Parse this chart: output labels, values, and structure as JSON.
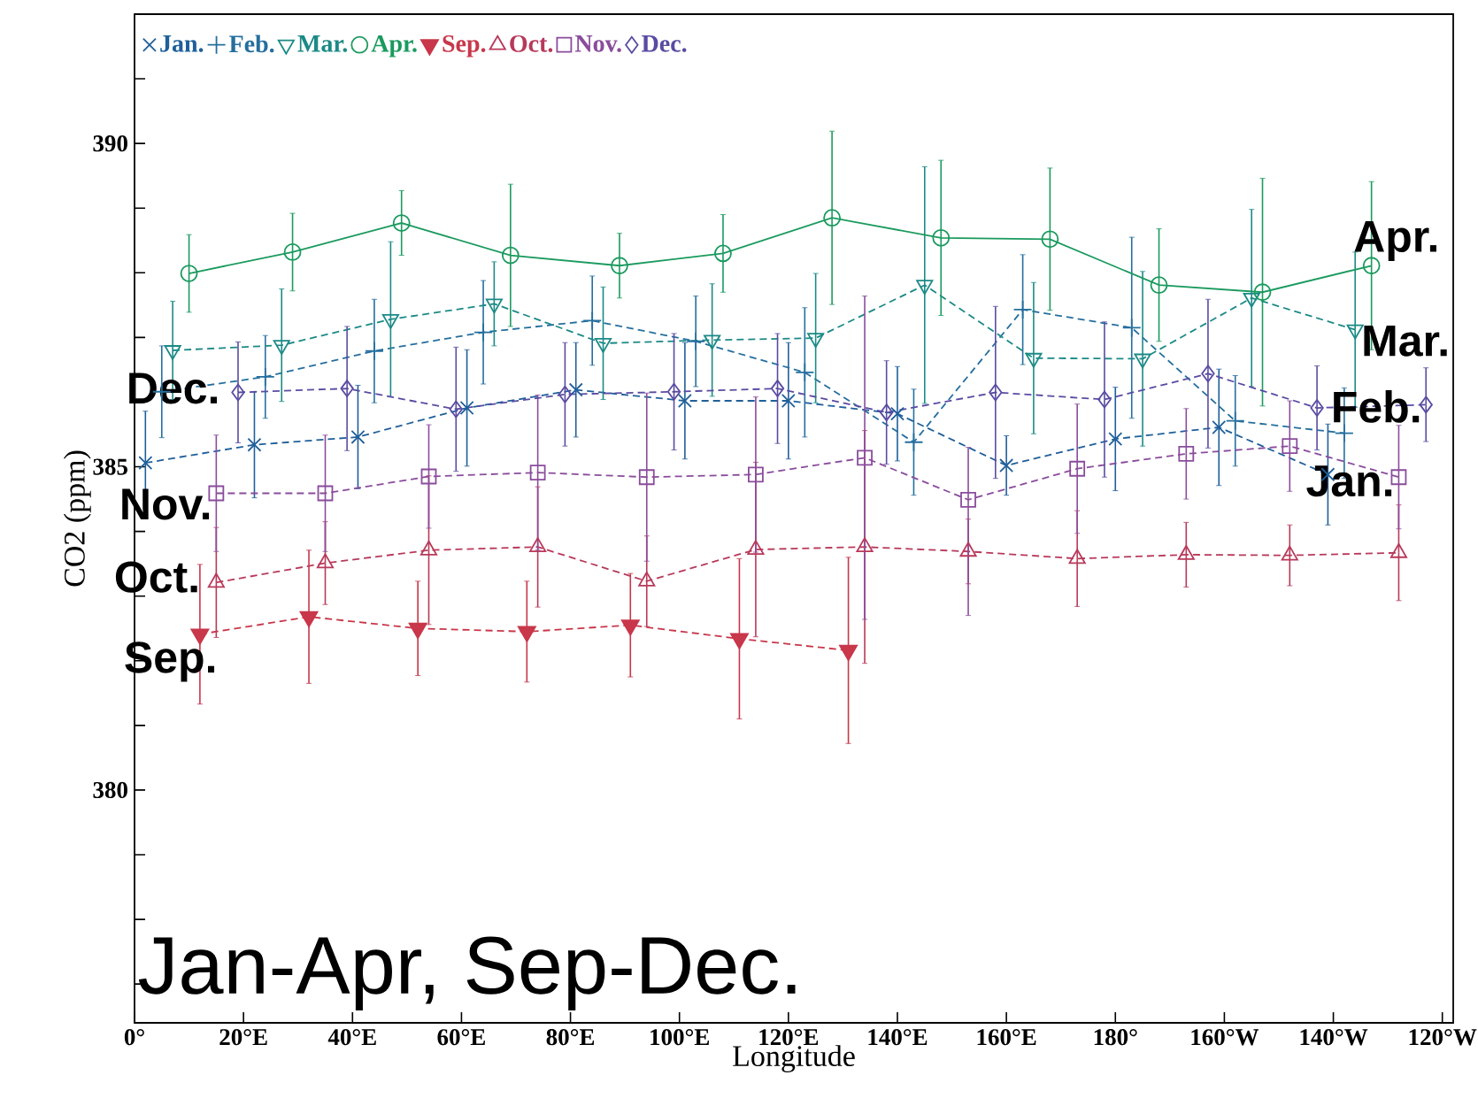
{
  "chart_data": {
    "type": "line",
    "xlabel": "Longitude",
    "ylabel": "CO2 (ppm)",
    "xlim": [
      0,
      242
    ],
    "ylim": [
      376.4,
      392
    ],
    "xticks": [
      {
        "value": 0,
        "label": "0°"
      },
      {
        "value": 20,
        "label": "20°E"
      },
      {
        "value": 40,
        "label": "40°E"
      },
      {
        "value": 60,
        "label": "60°E"
      },
      {
        "value": 80,
        "label": "80°E"
      },
      {
        "value": 100,
        "label": "100°E"
      },
      {
        "value": 120,
        "label": "120°E"
      },
      {
        "value": 140,
        "label": "140°E"
      },
      {
        "value": 160,
        "label": "160°E"
      },
      {
        "value": 180,
        "label": "180°"
      },
      {
        "value": 200,
        "label": "160°W"
      },
      {
        "value": 220,
        "label": "140°W"
      },
      {
        "value": 240,
        "label": "120°W"
      }
    ],
    "yticks": [
      {
        "value": 377,
        "label": null
      },
      {
        "value": 378,
        "label": null
      },
      {
        "value": 379,
        "label": null
      },
      380,
      {
        "value": 381,
        "label": null
      },
      {
        "value": 382,
        "label": null
      },
      {
        "value": 383,
        "label": null
      },
      {
        "value": 384,
        "label": null
      },
      385,
      {
        "value": 386,
        "label": null
      },
      {
        "value": 387,
        "label": null
      },
      {
        "value": 388,
        "label": null
      },
      {
        "value": 389,
        "label": null
      },
      390,
      {
        "value": 391,
        "label": null
      }
    ],
    "legend": "top left",
    "grid": false,
    "series": [
      {
        "name": "Jan.",
        "color": "#1f5f9a",
        "marker": "cross",
        "line_style": "dashed",
        "x": [
          2,
          22,
          41,
          61,
          81,
          101,
          120,
          140,
          160,
          180,
          199,
          219
        ],
        "values": [
          385.06,
          385.34,
          385.46,
          385.91,
          386.19,
          386.02,
          386.02,
          385.82,
          385.02,
          385.43,
          385.61,
          384.88
        ],
        "errors": [
          0.8,
          0.82,
          0.8,
          0.9,
          0.73,
          0.9,
          0.9,
          0.73,
          0.46,
          0.8,
          0.9,
          0.78
        ]
      },
      {
        "name": "Feb.",
        "color": "#246f9e",
        "marker": "plus",
        "line_style": "dashed",
        "x": [
          5,
          24,
          44,
          64,
          84,
          103,
          123,
          143,
          163,
          183,
          202,
          222
        ],
        "values": [
          386.16,
          386.39,
          386.79,
          387.08,
          387.26,
          386.94,
          386.46,
          385.38,
          387.43,
          387.15,
          385.71,
          385.52
        ],
        "errors": [
          0.71,
          0.64,
          0.8,
          0.8,
          0.69,
          0.7,
          1.0,
          0.82,
          0.85,
          1.4,
          0.7,
          0.7
        ]
      },
      {
        "name": "Mar.",
        "color": "#1b8a86",
        "marker": "triangle_down",
        "line_style": "dashed",
        "x": [
          7,
          27,
          47,
          66,
          86,
          106,
          125,
          145,
          165,
          185,
          205,
          224
        ],
        "values": [
          386.8,
          386.88,
          387.28,
          387.52,
          386.91,
          386.96,
          386.99,
          387.81,
          386.68,
          386.67,
          387.61,
          387.12
        ],
        "errors": [
          0.76,
          0.87,
          1.2,
          0.65,
          0.87,
          0.87,
          1.0,
          1.83,
          1.17,
          1.35,
          1.37,
          1.2
        ]
      },
      {
        "name": "Apr.",
        "color": "#1a9a5e",
        "marker": "circle",
        "line_style": "solid",
        "x": [
          10,
          29,
          49,
          69,
          89,
          108,
          128,
          148,
          168,
          188,
          207,
          227
        ],
        "values": [
          387.99,
          388.32,
          388.77,
          388.27,
          388.11,
          388.3,
          388.85,
          388.54,
          388.52,
          387.81,
          387.7,
          388.11
        ],
        "errors": [
          0.6,
          0.6,
          0.5,
          1.1,
          0.5,
          0.6,
          1.34,
          1.2,
          1.1,
          0.87,
          1.76,
          1.3
        ]
      },
      {
        "name": "Sep.",
        "color": "#c8374a",
        "marker": "triangle_down_filled",
        "line_style": "dashed",
        "x": [
          12,
          32,
          52,
          72,
          91,
          111,
          131
        ],
        "values": [
          382.41,
          382.68,
          382.5,
          382.45,
          382.55,
          382.34,
          382.16
        ],
        "errors": [
          1.08,
          1.03,
          0.73,
          0.78,
          0.8,
          1.24,
          1.44
        ]
      },
      {
        "name": "Oct.",
        "color": "#b8395a",
        "marker": "triangle",
        "line_style": "dashed",
        "x": [
          15,
          35,
          54,
          74,
          94,
          114,
          134,
          153,
          173,
          193,
          212,
          232
        ],
        "values": [
          383.21,
          383.51,
          383.71,
          383.76,
          383.23,
          383.72,
          383.76,
          383.69,
          383.58,
          383.64,
          383.63,
          383.67
        ],
        "errors": [
          0.85,
          0.64,
          1.15,
          0.93,
          0.7,
          1.35,
          1.8,
          0.5,
          0.74,
          0.5,
          0.47,
          0.74
        ]
      },
      {
        "name": "Nov.",
        "color": "#8a4c9c",
        "marker": "square",
        "line_style": "dashed",
        "x": [
          15,
          35,
          54,
          74,
          94,
          114,
          134,
          153,
          173,
          193,
          212,
          232
        ],
        "values": [
          384.59,
          384.59,
          384.85,
          384.91,
          384.84,
          384.88,
          385.14,
          384.49,
          384.97,
          385.2,
          385.32,
          384.84
        ],
        "errors": [
          0.9,
          0.9,
          0.8,
          1.2,
          1.3,
          1.2,
          2.5,
          [
            382.7,
            385.3
          ],
          1.0,
          0.7,
          0.7,
          0.8
        ]
      },
      {
        "name": "Dec.",
        "color": "#5a4ba2",
        "marker": "diamond",
        "line_style": "dashed",
        "x": [
          19,
          39,
          59,
          79,
          99,
          118,
          138,
          158,
          178,
          197,
          217,
          237
        ],
        "values": [
          386.15,
          386.21,
          385.89,
          386.12,
          386.16,
          386.21,
          385.84,
          386.15,
          386.04,
          386.44,
          385.91,
          385.96
        ],
        "errors": [
          0.78,
          0.96,
          0.96,
          0.8,
          0.9,
          0.85,
          0.8,
          1.33,
          1.2,
          1.15,
          0.65,
          0.57
        ]
      }
    ],
    "annotations": [
      "Apr.",
      "Mar.",
      "Feb.",
      "Jan.",
      "Dec.",
      "Nov.",
      "Oct.",
      "Sep.",
      "Jan-Apr, Sep-Dec."
    ]
  }
}
